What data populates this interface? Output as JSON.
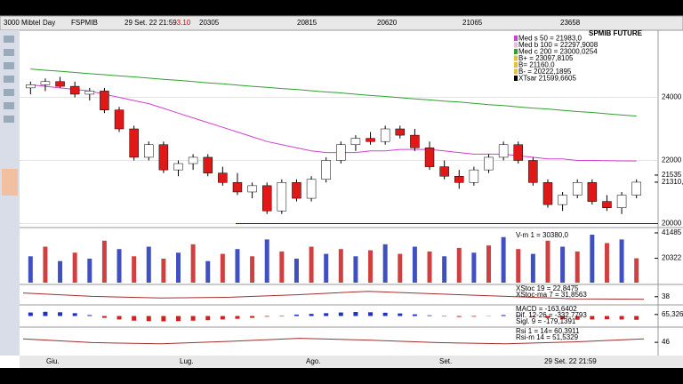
{
  "toolbar": {
    "items": [
      "3000 Mibtel",
      "Day",
      "FSPMIB",
      "29 Set. 22 21:59",
      "-3.10",
      "20305",
      "20815",
      "20620",
      "21065",
      "23658"
    ]
  },
  "instrument": "SPMIB FUTURE",
  "legend": [
    {
      "label": "Med s 50 = 21983,0",
      "color": "#d040d0"
    },
    {
      "label": "Med b 100 = 22297,9008",
      "color": "#e0c0e0"
    },
    {
      "label": "Med c 200 = 23000,0254",
      "color": "#30a030"
    },
    {
      "label": "B+ = 23097,8105",
      "color": "#e8c040"
    },
    {
      "label": "B= 21160,0",
      "color": "#e8c040"
    },
    {
      "label": "B- = 20222,1895",
      "color": "#e8c040"
    },
    {
      "label": "XTsar 21599,6605",
      "color": "#000000"
    }
  ],
  "chart_data": {
    "type": "candlestick",
    "open": [
      24300,
      24400,
      24500,
      24350,
      24100,
      24200,
      23600,
      23000,
      22100,
      22500,
      21700,
      21900,
      22100,
      21600,
      21300,
      21000,
      21200,
      20400,
      21300,
      20800,
      21400,
      22000,
      22500,
      22700,
      22600,
      23000,
      22800,
      22400,
      21800,
      21500,
      21300,
      21700,
      22100,
      22500,
      22000,
      21300,
      20600,
      20900,
      21300,
      20700,
      20500,
      20900
    ],
    "high": [
      24500,
      24600,
      24650,
      24500,
      24300,
      24300,
      23700,
      23100,
      22600,
      22600,
      22000,
      22200,
      22200,
      21800,
      21600,
      21300,
      21300,
      21400,
      21400,
      21500,
      22100,
      22600,
      22800,
      22900,
      23100,
      23100,
      23000,
      22600,
      22000,
      21700,
      21800,
      22200,
      22600,
      22600,
      22100,
      21400,
      21000,
      21400,
      21400,
      20900,
      21000,
      21400
    ],
    "low": [
      24100,
      24200,
      24300,
      24000,
      23900,
      23500,
      22900,
      22000,
      22000,
      21600,
      21500,
      21700,
      21500,
      21200,
      20900,
      20800,
      20300,
      20300,
      20700,
      20700,
      21300,
      21900,
      22300,
      22500,
      22500,
      22700,
      22300,
      21700,
      21400,
      21100,
      21200,
      21600,
      22000,
      21900,
      21200,
      20500,
      20400,
      20800,
      20600,
      20400,
      20300,
      20800
    ],
    "close": [
      24400,
      24500,
      24350,
      24100,
      24200,
      23600,
      23000,
      22100,
      22500,
      21700,
      21900,
      22100,
      21600,
      21300,
      21000,
      21200,
      20400,
      21300,
      20800,
      21400,
      22000,
      22500,
      22700,
      22600,
      23000,
      22800,
      22400,
      21800,
      21500,
      21300,
      21700,
      22100,
      22500,
      22000,
      21300,
      20600,
      20900,
      21300,
      20700,
      20500,
      20900,
      21310.8
    ],
    "ma50": [
      24400,
      24350,
      24300,
      24250,
      24200,
      24100,
      24000,
      23900,
      23800,
      23650,
      23500,
      23350,
      23200,
      23050,
      22900,
      22750,
      22600,
      22500,
      22400,
      22300,
      22250,
      22250,
      22250,
      22300,
      22300,
      22350,
      22350,
      22350,
      22300,
      22250,
      22200,
      22200,
      22200,
      22150,
      22100,
      22050,
      22050,
      22000,
      22000,
      21990,
      21985,
      21983
    ],
    "ma200": [
      24900,
      24860,
      24830,
      24790,
      24750,
      24720,
      24680,
      24650,
      24610,
      24570,
      24540,
      24500,
      24460,
      24430,
      24390,
      24350,
      24320,
      24280,
      24250,
      24210,
      24170,
      24140,
      24100,
      24060,
      24030,
      23990,
      23950,
      23920,
      23880,
      23850,
      23810,
      23770,
      23740,
      23700,
      23660,
      23630,
      23590,
      23550,
      23520,
      23480,
      23440,
      23410
    ],
    "ma50_color": "#d040d0",
    "ma200_color": "#30a030",
    "up_color": "#ffffff",
    "down_color": "#e01818",
    "ylim": [
      19900,
      26100
    ],
    "yticks": [
      20000,
      22000,
      24000
    ],
    "price_tags": [
      {
        "value": 21535,
        "label": "21535"
      },
      {
        "value": 21310.8,
        "label": "21310,8"
      }
    ],
    "xlabels": [
      "Giu.",
      "Lug.",
      "Ago.",
      "Set.",
      "29 Set. 22 21:59"
    ]
  },
  "volume": {
    "legend": "V-m 1 = 30380,0",
    "values": [
      22000,
      30000,
      18000,
      25000,
      20000,
      35000,
      28000,
      22000,
      30000,
      20000,
      25000,
      32000,
      18000,
      24000,
      28000,
      22000,
      36000,
      26000,
      20000,
      30000,
      24000,
      28000,
      22000,
      27000,
      32000,
      24000,
      30000,
      26000,
      22000,
      29000,
      25000,
      31000,
      38000,
      28000,
      24000,
      35000,
      30000,
      26000,
      40000,
      33000,
      36000,
      20322
    ],
    "ylim": [
      0,
      41485
    ],
    "yticks": [
      20322,
      41485
    ]
  },
  "stochastic": {
    "legend": [
      "XStoc 19 = 22,8475",
      "XStoc-ma 7 = 31,8563"
    ],
    "values": [
      60,
      40,
      30,
      35,
      50,
      70,
      55,
      40,
      25,
      23
    ],
    "ylim": [
      0,
      100
    ],
    "yticks": [
      38
    ]
  },
  "macd": {
    "legend": [
      "MACD = -163,6402",
      "Dif. 12-26 = -332,7793",
      "Sigl. 9 = -179,1391"
    ],
    "values": [
      150,
      180,
      160,
      120,
      40,
      -80,
      -150,
      -200,
      -220,
      -230,
      -220,
      -200,
      -180,
      -150,
      -120,
      -80,
      -30,
      20,
      60,
      90,
      120,
      150,
      170,
      160,
      140,
      110,
      70,
      30,
      -20,
      -40,
      -30,
      10,
      40,
      30,
      -30,
      -90,
      -140,
      -160,
      -150,
      -140,
      -150,
      -163.64
    ],
    "ylim": [
      -400,
      400
    ],
    "yticks": [
      {
        "value": 65.326,
        "label": "65,326"
      }
    ]
  },
  "rsi": {
    "legend": [
      "Rsi 1 = 14= 60,3911",
      "Rsi-m 14 = 51,5329"
    ],
    "values": [
      60,
      45,
      40,
      50,
      62,
      55,
      45,
      40,
      48,
      60
    ],
    "ylim": [
      0,
      100
    ],
    "yticks": [
      46
    ]
  }
}
